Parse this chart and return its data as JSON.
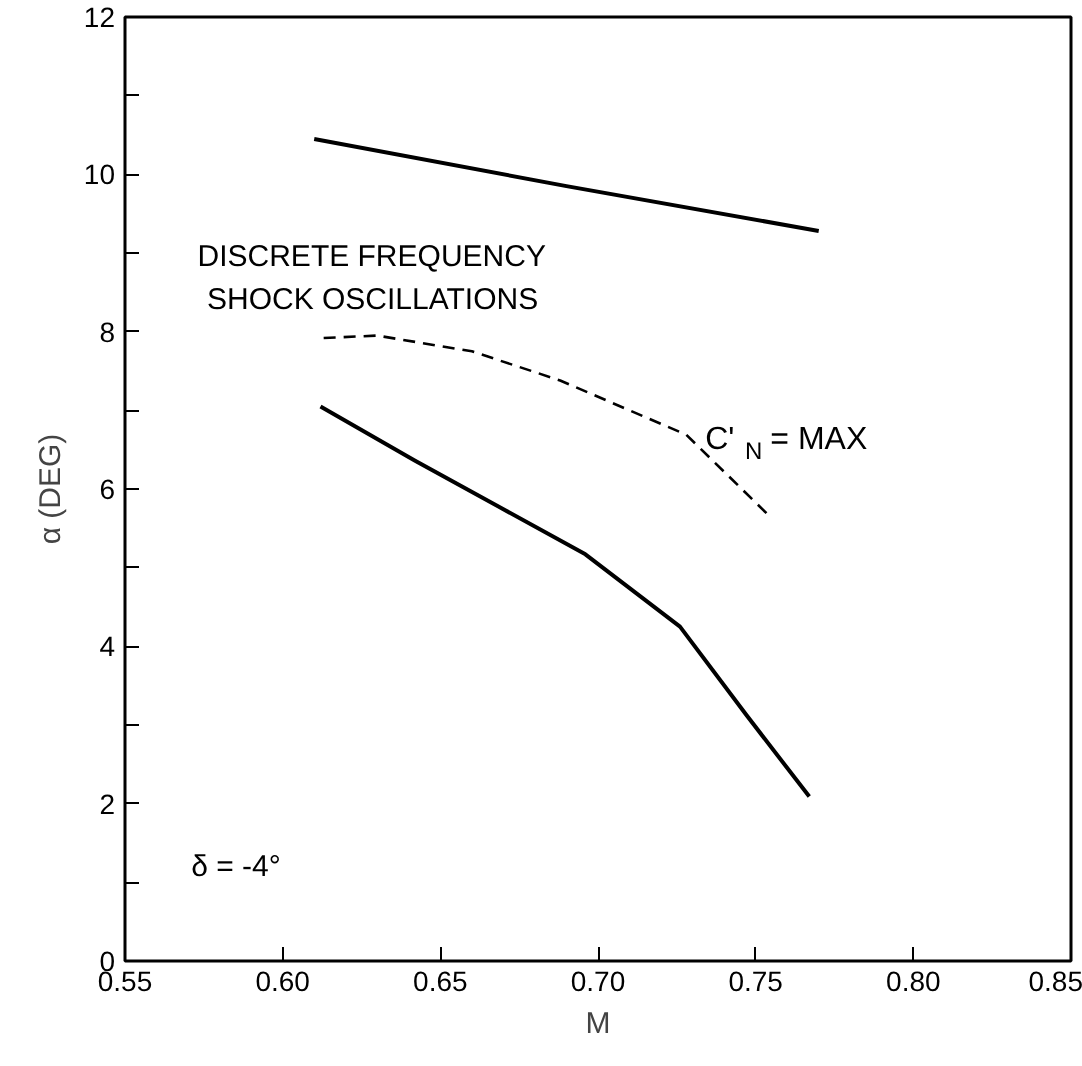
{
  "chart_data": {
    "type": "line",
    "xlabel": "M",
    "ylabel": "α (DEG)",
    "xlim": [
      0.55,
      0.85
    ],
    "xticks": [
      0.55,
      {
        "value": 0.6,
        "label": "0.60"
      },
      0.65,
      {
        "value": 0.7,
        "label": "0.70"
      },
      0.75,
      {
        "value": 0.8,
        "label": "0.80"
      },
      0.85
    ],
    "ylim": [
      0,
      12
    ],
    "yticks": [
      0,
      {
        "value": 1,
        "label": null
      },
      2,
      {
        "value": 3,
        "label": null
      },
      4,
      {
        "value": 5,
        "label": null
      },
      6,
      {
        "value": 7,
        "label": null
      },
      8,
      {
        "value": 9,
        "label": null
      },
      10,
      {
        "value": 11,
        "label": null
      },
      12
    ],
    "grid": false,
    "marker": "none",
    "annotations": [
      "DISCRETE FREQUENCY\nSHOCK OSCILLATIONS",
      "δ = -4°"
    ],
    "series": [
      {
        "color": "#000000",
        "line_style": "solid",
        "x": [
          0.61,
          0.69,
          0.77
        ],
        "values": [
          10.45,
          9.85,
          9.28
        ]
      },
      {
        "name": "C'$_{N}$ = MAX",
        "color": "#000000",
        "line_style": "dashed",
        "x": [
          0.613,
          0.63,
          0.66,
          0.688,
          0.71,
          0.728,
          0.754
        ],
        "values": [
          7.92,
          7.95,
          7.75,
          7.38,
          7.0,
          6.69,
          5.67
        ]
      },
      {
        "color": "#000000",
        "line_style": "solid",
        "x": [
          0.612,
          0.642,
          0.696,
          0.726,
          0.747,
          0.767
        ],
        "values": [
          7.05,
          6.36,
          5.17,
          4.25,
          3.13,
          2.09
        ]
      }
    ]
  }
}
